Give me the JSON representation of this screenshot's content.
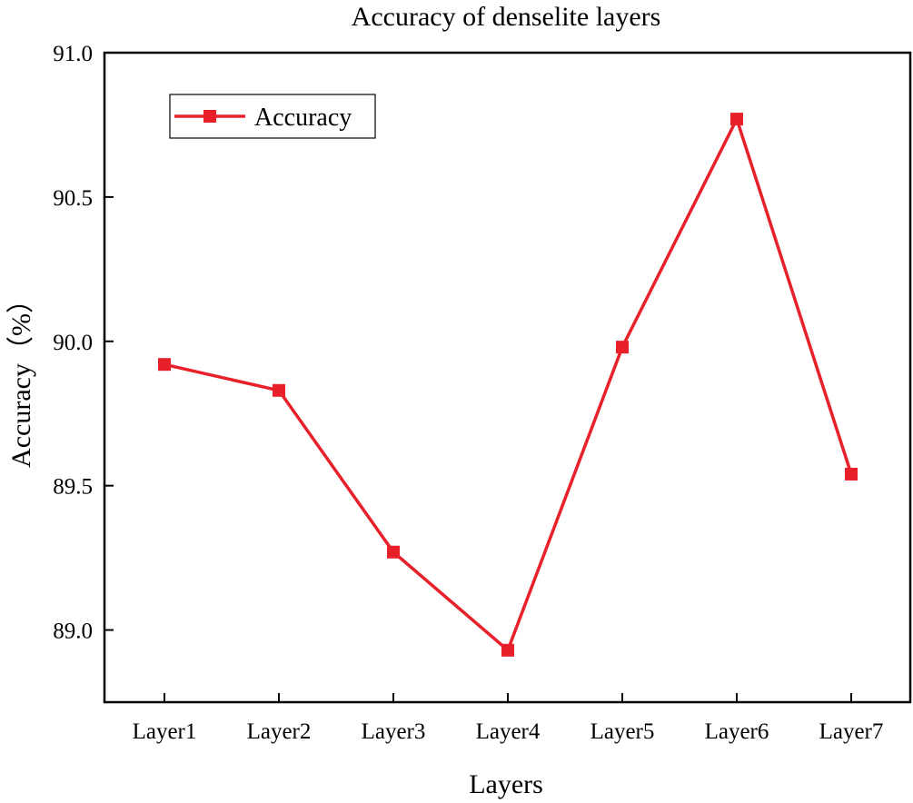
{
  "chart_data": {
    "type": "line",
    "title": "Accuracy of denselite layers",
    "xlabel": "Layers",
    "ylabel": "Accuracy（%）",
    "categories": [
      "Layer1",
      "Layer2",
      "Layer3",
      "Layer4",
      "Layer5",
      "Layer6",
      "Layer7"
    ],
    "series": [
      {
        "name": "Accuracy",
        "color": "#e8202a",
        "marker": "square",
        "values": [
          89.92,
          89.83,
          89.27,
          88.93,
          89.98,
          90.77,
          89.54
        ]
      }
    ],
    "ylim": [
      88.75,
      91.0
    ],
    "yticks": [
      "89.0",
      "89.5",
      "90.0",
      "90.5",
      "91.0"
    ],
    "grid": false,
    "legend_position": "top-left"
  }
}
